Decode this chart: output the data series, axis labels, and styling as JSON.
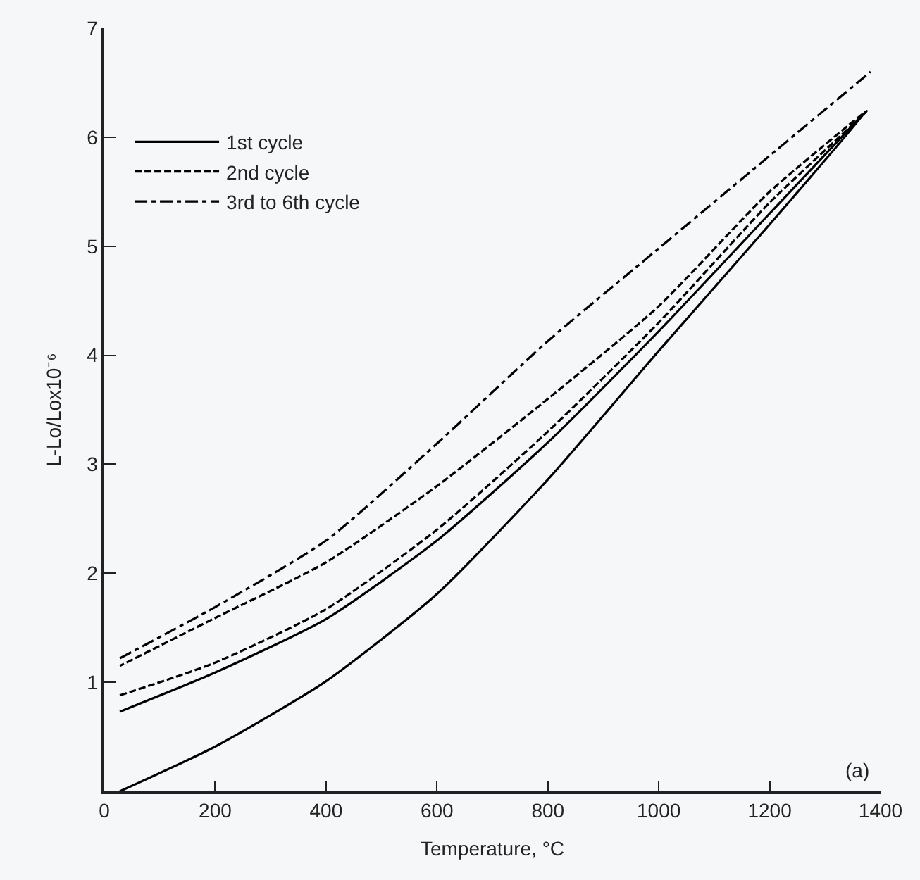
{
  "chart_data": {
    "type": "line",
    "xlabel": "Temperature, °C",
    "ylabel": "L-Lo/Lox10⁻⁶",
    "xlim": [
      0,
      1400
    ],
    "xticks": [
      0,
      200,
      400,
      600,
      800,
      1000,
      1200,
      1400
    ],
    "ylim": [
      0,
      7
    ],
    "yticks": [
      1,
      2,
      3,
      4,
      5,
      6,
      7
    ],
    "grid": false,
    "legend": "top left",
    "marker": "none",
    "annotations": [
      "(a)"
    ],
    "series": [
      {
        "name": "1st cycle",
        "color": "#000000",
        "line_style": "solid",
        "x": [
          28,
          200,
          400,
          600,
          800,
          1000,
          1200,
          1375,
          1200,
          1000,
          800,
          600,
          400,
          200,
          28
        ],
        "values": [
          0,
          0.41,
          1.01,
          1.81,
          2.86,
          4.04,
          5.2,
          6.24,
          5.3,
          4.22,
          3.2,
          2.3,
          1.58,
          1.09,
          0.73
        ]
      },
      {
        "name": "2nd cycle",
        "color": "#000000",
        "line_style": "dashed",
        "x": [
          28,
          200,
          400,
          600,
          800,
          1000,
          1200,
          1375,
          1200,
          1000,
          800,
          600,
          400,
          200,
          28
        ],
        "values": [
          0.88,
          1.18,
          1.67,
          2.4,
          3.3,
          4.3,
          5.4,
          6.24,
          5.5,
          4.45,
          3.6,
          2.8,
          2.1,
          1.59,
          1.15
        ]
      },
      {
        "name": "3rd to 6th cycle",
        "color": "#000000",
        "line_style": "dashdot",
        "x": [
          28,
          200,
          400,
          600,
          800,
          1000,
          1200,
          1382
        ],
        "values": [
          1.22,
          1.69,
          2.3,
          3.19,
          4.13,
          4.98,
          5.83,
          6.6
        ]
      }
    ]
  }
}
